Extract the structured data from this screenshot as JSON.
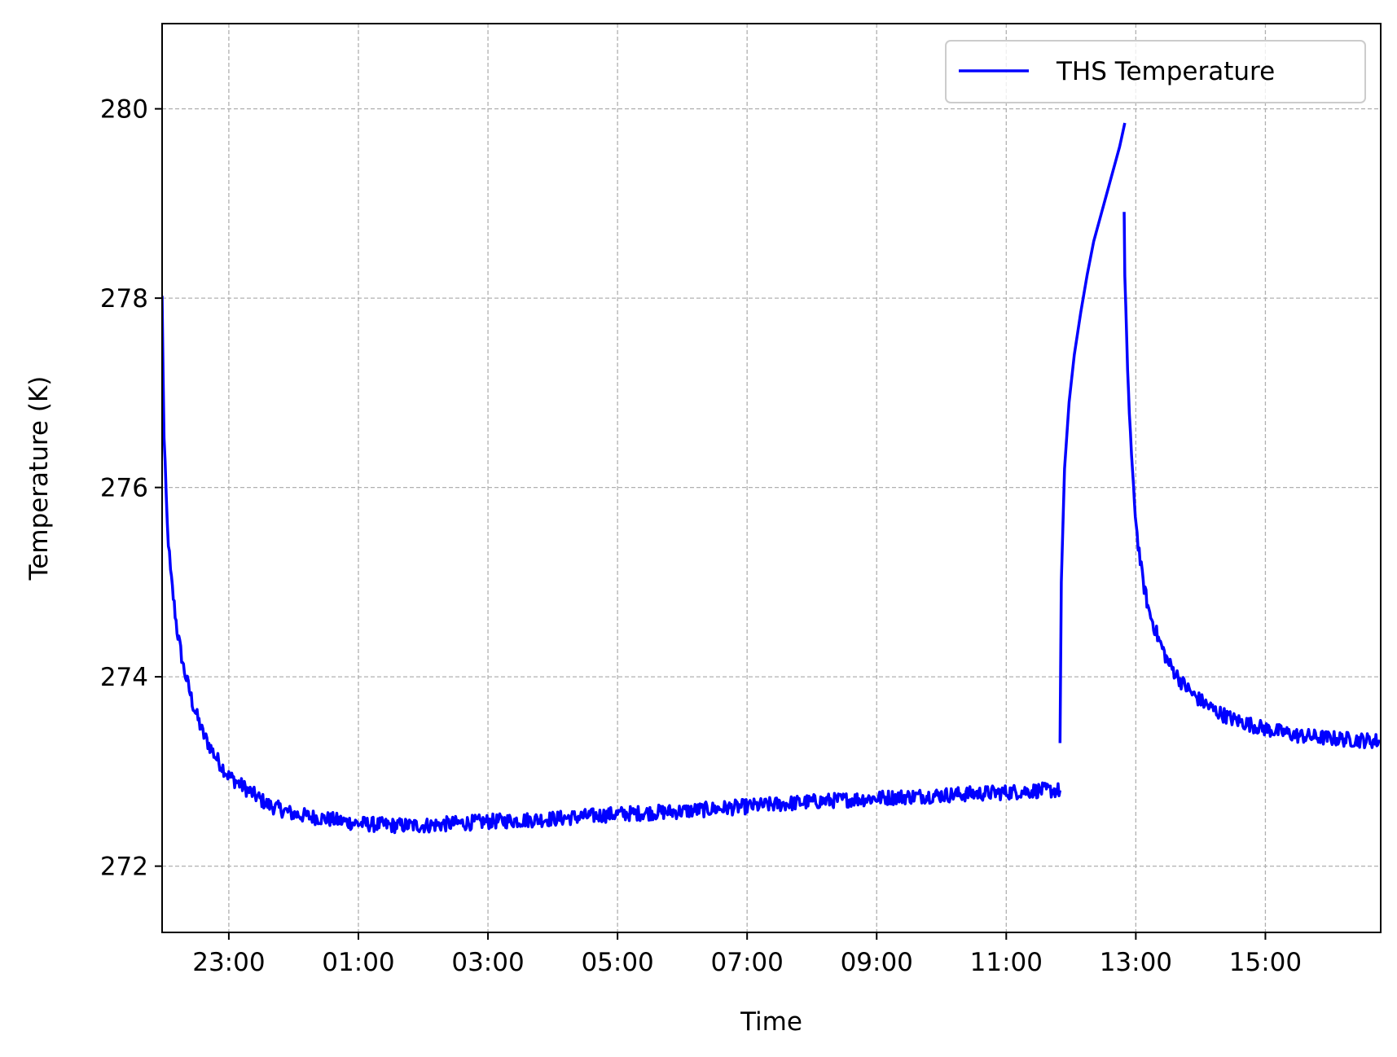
{
  "chart_data": {
    "type": "line",
    "title": "",
    "xlabel": "Time",
    "ylabel": "Temperature (K)",
    "x_unit": "hours (time of day, continuing past midnight)",
    "xlim": [
      21.97,
      40.78
    ],
    "ylim": [
      271.3,
      280.9
    ],
    "grid": true,
    "legend_position": "top-right",
    "x_ticks": [
      {
        "value": 23,
        "label": "23:00"
      },
      {
        "value": 25,
        "label": "01:00"
      },
      {
        "value": 27,
        "label": "03:00"
      },
      {
        "value": 29,
        "label": "05:00"
      },
      {
        "value": 31,
        "label": "07:00"
      },
      {
        "value": 33,
        "label": "09:00"
      },
      {
        "value": 35,
        "label": "11:00"
      },
      {
        "value": 37,
        "label": "13:00"
      },
      {
        "value": 39,
        "label": "15:00"
      }
    ],
    "y_ticks": [
      {
        "value": 272,
        "label": "272"
      },
      {
        "value": 274,
        "label": "274"
      },
      {
        "value": 276,
        "label": "276"
      },
      {
        "value": 278,
        "label": "278"
      },
      {
        "value": 280,
        "label": "280"
      }
    ],
    "series": [
      {
        "name": "THS Temperature",
        "color": "#0000ff",
        "segments": [
          [
            [
              21.97,
              278.0
            ],
            [
              22.0,
              276.5
            ],
            [
              22.05,
              275.6
            ],
            [
              22.1,
              275.1
            ],
            [
              22.2,
              274.5
            ],
            [
              22.3,
              274.1
            ],
            [
              22.45,
              273.7
            ],
            [
              22.6,
              273.4
            ],
            [
              22.8,
              273.15
            ],
            [
              23.0,
              272.95
            ],
            [
              23.3,
              272.8
            ],
            [
              23.6,
              272.65
            ],
            [
              24.0,
              272.55
            ],
            [
              24.5,
              272.5
            ],
            [
              25.0,
              272.45
            ],
            [
              25.5,
              272.43
            ],
            [
              26.0,
              272.43
            ],
            [
              26.5,
              272.45
            ],
            [
              27.0,
              272.47
            ],
            [
              28.0,
              272.5
            ],
            [
              29.0,
              272.55
            ],
            [
              30.0,
              272.58
            ],
            [
              31.0,
              272.63
            ],
            [
              32.0,
              272.68
            ],
            [
              33.0,
              272.72
            ],
            [
              34.0,
              272.75
            ],
            [
              35.0,
              272.78
            ],
            [
              35.5,
              272.8
            ],
            [
              35.83,
              272.8
            ]
          ],
          [
            [
              35.83,
              273.3
            ],
            [
              35.85,
              275.0
            ],
            [
              35.9,
              276.2
            ],
            [
              35.97,
              276.9
            ],
            [
              36.05,
              277.4
            ],
            [
              36.15,
              277.85
            ],
            [
              36.25,
              278.25
            ],
            [
              36.35,
              278.6
            ],
            [
              36.45,
              278.85
            ],
            [
              36.55,
              279.1
            ],
            [
              36.65,
              279.35
            ],
            [
              36.75,
              279.6
            ],
            [
              36.83,
              279.85
            ]
          ],
          [
            [
              36.82,
              278.9
            ],
            [
              36.83,
              278.2
            ],
            [
              36.86,
              277.5
            ],
            [
              36.9,
              276.8
            ],
            [
              36.95,
              276.1
            ],
            [
              37.02,
              275.5
            ],
            [
              37.1,
              275.05
            ],
            [
              37.2,
              274.7
            ],
            [
              37.35,
              274.4
            ],
            [
              37.5,
              274.15
            ],
            [
              37.7,
              273.95
            ],
            [
              37.9,
              273.8
            ],
            [
              38.2,
              273.65
            ],
            [
              38.5,
              273.55
            ],
            [
              39.0,
              273.45
            ],
            [
              39.5,
              273.38
            ],
            [
              40.0,
              273.35
            ],
            [
              40.5,
              273.33
            ],
            [
              40.78,
              273.32
            ]
          ]
        ],
        "noise_amplitude": 0.08
      }
    ]
  }
}
